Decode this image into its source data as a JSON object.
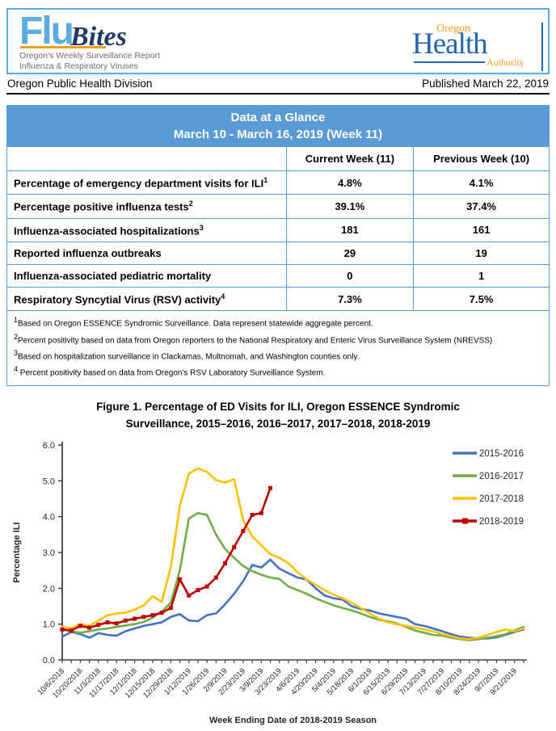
{
  "header": {
    "logo_flu": "Flu",
    "logo_bites": "Bites",
    "subtitle_line1": "Oregon's Weekly Surveillance Report",
    "subtitle_line2": "Influenza & Respiratory Viruses",
    "oha_oregon": "Oregon",
    "oha_health": "Health",
    "oha_authority": "Authority"
  },
  "pub_line": {
    "division": "Oregon Public Health Division",
    "published": "Published March 22, 2019"
  },
  "glance_table": {
    "title_line1": "Data at a Glance",
    "title_line2": "March 10 - March 16, 2019 (Week 11)",
    "col_current": "Current Week (11)",
    "col_previous": "Previous Week (10)",
    "rows": [
      {
        "label": "Percentage of emergency department visits for ILI",
        "sup": "1",
        "current": "4.8%",
        "previous": "4.1%"
      },
      {
        "label": "Percentage positive influenza tests",
        "sup": "2",
        "current": "39.1%",
        "previous": "37.4%"
      },
      {
        "label": "Influenza-associated hospitalizations",
        "sup": "3",
        "current": "181",
        "previous": "161"
      },
      {
        "label": "Reported influenza outbreaks",
        "sup": "",
        "current": "29",
        "previous": "19"
      },
      {
        "label": "Influenza-associated pediatric mortality",
        "sup": "",
        "current": "0",
        "previous": "1"
      },
      {
        "label": "Respiratory Syncytial Virus (RSV) activity",
        "sup": "4",
        "current": "7.3%",
        "previous": "7.5%"
      }
    ],
    "footnotes": [
      {
        "sup": "1",
        "text": "Based on Oregon ESSENCE Syndromic Surveillance. Data represent statewide aggregate percent."
      },
      {
        "sup": "2",
        "text": "Percent positivity based on data from Oregon reporters to the National Respiratory and Enteric Virus Surveillance System (NREVSS)"
      },
      {
        "sup": "3",
        "text": "Based on hospitalization surveillance in Clackamas, Multnomah, and Washington counties only."
      },
      {
        "sup": "4",
        "text": " Percent positivity based on data from Oregon's RSV Laboratory Surveillance System."
      }
    ]
  },
  "figure": {
    "title_line1": "Figure 1. Percentage of ED Visits for ILI, Oregon ESSENCE Syndromic",
    "title_line2": "Surveillance, 2015–2016, 2016–2017, 2017–2018, 2018-2019"
  },
  "chart_data": {
    "type": "line",
    "title": "Figure 1. Percentage of ED Visits for ILI, Oregon ESSENCE Syndromic Surveillance, 2015–2016, 2016–2017, 2017–2018, 2018-2019",
    "xlabel": "Week Ending Date of 2018-2019 Season",
    "ylabel": "Percentage ILI",
    "ylim": [
      0,
      6
    ],
    "yticks": [
      0,
      1,
      2,
      3,
      4,
      5,
      6
    ],
    "grid": false,
    "legend_position": "top-right",
    "x_label_every": 2,
    "x": [
      "10/6/2018",
      "10/13/2018",
      "10/20/2018",
      "10/27/2018",
      "11/3/2018",
      "11/10/2018",
      "11/17/2018",
      "11/24/2018",
      "12/1/2018",
      "12/8/2018",
      "12/15/2018",
      "12/22/2018",
      "12/29/2018",
      "1/5/2019",
      "1/12/2019",
      "1/19/2019",
      "1/26/2019",
      "2/2/2019",
      "2/9/2019",
      "2/16/2019",
      "2/23/2019",
      "3/2/2019",
      "3/9/2019",
      "3/16/2019",
      "3/23/2019",
      "3/30/2019",
      "4/6/2019",
      "4/13/2019",
      "4/20/2019",
      "4/27/2019",
      "5/4/2019",
      "5/11/2019",
      "5/18/2019",
      "5/25/2019",
      "6/1/2019",
      "6/8/2019",
      "6/15/2019",
      "6/22/2019",
      "6/29/2019",
      "7/6/2019",
      "7/13/2019",
      "7/20/2019",
      "7/27/2019",
      "8/3/2019",
      "8/10/2019",
      "8/17/2019",
      "8/24/2019",
      "8/31/2019",
      "9/7/2019",
      "9/14/2019",
      "9/21/2019",
      "9/28/2019"
    ],
    "series": [
      {
        "name": "2015-2016",
        "color": "#4472C4",
        "marker": "none",
        "values": [
          0.65,
          0.78,
          0.72,
          0.62,
          0.75,
          0.7,
          0.68,
          0.8,
          0.88,
          0.95,
          1.0,
          1.05,
          1.2,
          1.28,
          1.1,
          1.08,
          1.25,
          1.3,
          1.55,
          1.85,
          2.2,
          2.65,
          2.58,
          2.8,
          2.55,
          2.42,
          2.3,
          2.25,
          2.0,
          1.8,
          1.72,
          1.68,
          1.5,
          1.42,
          1.38,
          1.3,
          1.25,
          1.2,
          1.15,
          1.0,
          0.95,
          0.88,
          0.8,
          0.72,
          0.65,
          0.62,
          0.6,
          0.6,
          0.63,
          0.7,
          0.78,
          0.85
        ]
      },
      {
        "name": "2016-2017",
        "color": "#70AD47",
        "marker": "none",
        "values": [
          0.85,
          0.8,
          0.76,
          0.8,
          0.85,
          0.88,
          0.92,
          0.96,
          1.0,
          1.06,
          1.18,
          1.35,
          1.6,
          2.5,
          3.95,
          4.1,
          4.05,
          3.5,
          3.1,
          2.85,
          2.62,
          2.48,
          2.38,
          2.3,
          2.26,
          2.05,
          1.95,
          1.85,
          1.72,
          1.62,
          1.52,
          1.45,
          1.38,
          1.3,
          1.2,
          1.12,
          1.08,
          1.02,
          0.92,
          0.82,
          0.76,
          0.7,
          0.68,
          0.62,
          0.58,
          0.55,
          0.58,
          0.62,
          0.66,
          0.72,
          0.82,
          0.92
        ]
      },
      {
        "name": "2017-2018",
        "color": "#FFC000",
        "marker": "none",
        "values": [
          0.92,
          0.88,
          1.0,
          0.95,
          1.1,
          1.25,
          1.3,
          1.32,
          1.4,
          1.52,
          1.78,
          1.62,
          2.6,
          4.3,
          5.2,
          5.35,
          5.25,
          5.02,
          4.95,
          5.05,
          3.9,
          3.45,
          3.2,
          2.95,
          2.85,
          2.7,
          2.45,
          2.25,
          2.1,
          1.95,
          1.82,
          1.72,
          1.6,
          1.45,
          1.3,
          1.15,
          1.05,
          1.0,
          0.95,
          0.9,
          0.85,
          0.8,
          0.72,
          0.66,
          0.6,
          0.58,
          0.62,
          0.7,
          0.78,
          0.85,
          0.8,
          0.88
        ]
      },
      {
        "name": "2018-2019",
        "color": "#C00000",
        "marker": "square",
        "values": [
          0.85,
          0.82,
          0.95,
          0.9,
          0.98,
          1.05,
          1.02,
          1.1,
          1.15,
          1.2,
          1.25,
          1.32,
          1.45,
          2.25,
          1.8,
          1.95,
          2.05,
          2.3,
          2.7,
          3.15,
          3.6,
          4.05,
          4.1,
          4.8
        ]
      }
    ]
  },
  "colors": {
    "table_blue": "#5B9BD5",
    "masthead_blue": "#56ABE0",
    "flu_blue": "#5CACDF",
    "bites_navy": "#1F3864",
    "accent_orange": "#F6A01A",
    "oha_blue": "#2565AE",
    "axis_gray": "#404040"
  }
}
